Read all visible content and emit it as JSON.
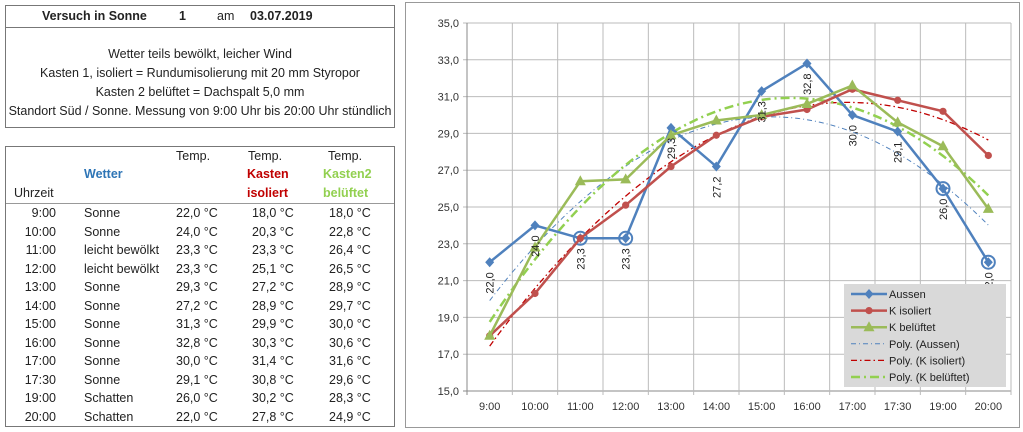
{
  "info": {
    "title": "Versuch in Sonne",
    "number": "1",
    "am": "am",
    "date": "03.07.2019",
    "lines": [
      "Wetter teils bewölkt, leicher Wind",
      "Kasten 1, isoliert = Rundumisolierung mit 20 mm Styropor",
      "Kasten 2 belüftet = Dachspalt 5,0 mm",
      "Standort Süd / Sonne. Messung von 9:00 Uhr bis 20:00 Uhr stündlich"
    ]
  },
  "table": {
    "headers": {
      "uhrzeit": "Uhrzeit",
      "wetter": "Wetter",
      "temp": "Temp.",
      "kasten": "Kasten",
      "isoliert": "isoliert",
      "kasten2": "Kasten2",
      "belueftet": "belüftet"
    },
    "colors": {
      "wetter": "#2e75b6",
      "kasten": "#c00000",
      "kasten2": "#92d050"
    },
    "rows": [
      [
        "9:00",
        "Sonne",
        "22,0 °C",
        "18,0 °C",
        "18,0 °C"
      ],
      [
        "10:00",
        "Sonne",
        "24,0 °C",
        "20,3 °C",
        "22,8 °C"
      ],
      [
        "11:00",
        "leicht bewölkt",
        "23,3 °C",
        "23,3 °C",
        "26,4 °C"
      ],
      [
        "12:00",
        "leicht bewölkt",
        "23,3 °C",
        "25,1 °C",
        "26,5 °C"
      ],
      [
        "13:00",
        "Sonne",
        "29,3 °C",
        "27,2 °C",
        "28,9 °C"
      ],
      [
        "14:00",
        "Sonne",
        "27,2 °C",
        "28,9 °C",
        "29,7 °C"
      ],
      [
        "15:00",
        "Sonne",
        "31,3 °C",
        "29,9 °C",
        "30,0 °C"
      ],
      [
        "16:00",
        "Sonne",
        "32,8 °C",
        "30,3 °C",
        "30,6 °C"
      ],
      [
        "17:00",
        "Sonne",
        "30,0 °C",
        "31,4 °C",
        "31,6 °C"
      ],
      [
        "17:30",
        "Sonne",
        "29,1 °C",
        "30,8 °C",
        "29,6 °C"
      ],
      [
        "19:00",
        "Schatten",
        "26,0 °C",
        "30,2 °C",
        "28,3 °C"
      ],
      [
        "20:00",
        "Schatten",
        "22,0 °C",
        "27,8 °C",
        "24,9 °C"
      ]
    ]
  },
  "chart_data": {
    "type": "line",
    "categories": [
      "9:00",
      "10:00",
      "11:00",
      "12:00",
      "13:00",
      "14:00",
      "15:00",
      "16:00",
      "17:00",
      "17:30",
      "19:00",
      "20:00"
    ],
    "ylim": [
      15,
      35
    ],
    "yticks": [
      "15,0",
      "17,0",
      "19,0",
      "21,0",
      "23,0",
      "25,0",
      "27,0",
      "29,0",
      "31,0",
      "33,0",
      "35,0"
    ],
    "grid": true,
    "legend_position": "bottom-right",
    "series": [
      {
        "name": "Aussen",
        "color": "#4f81bd",
        "marker": "diamond",
        "values": [
          22.0,
          24.0,
          23.3,
          23.3,
          29.3,
          27.2,
          31.3,
          32.8,
          30.0,
          29.1,
          26.0,
          22.0
        ],
        "data_labels": [
          "22,0",
          "24,0",
          "23,3",
          "23,3",
          "29,3",
          "27,2",
          "31,3",
          "32,8",
          "30,0",
          "29,1",
          "26,0",
          "22,0"
        ],
        "highlighted_points": [
          2,
          3,
          10,
          11
        ]
      },
      {
        "name": "K isoliert",
        "color": "#c0504d",
        "marker": "circle",
        "values": [
          18.0,
          20.3,
          23.3,
          25.1,
          27.2,
          28.9,
          29.9,
          30.3,
          31.4,
          30.8,
          30.2,
          27.8
        ]
      },
      {
        "name": "K belüftet",
        "color": "#9bbb59",
        "marker": "triangle",
        "values": [
          18.0,
          22.8,
          26.4,
          26.5,
          28.9,
          29.7,
          30.0,
          30.6,
          31.6,
          29.6,
          28.3,
          24.9
        ]
      }
    ],
    "trendlines": [
      {
        "name": "Poly. (Aussen)",
        "of": "Aussen",
        "color": "#4f81bd",
        "order": 2
      },
      {
        "name": "Poly. (K isoliert)",
        "of": "K isoliert",
        "color": "#c00000",
        "order": 2
      },
      {
        "name": "Poly. (K belüftet)",
        "of": "K belüftet",
        "color": "#92d050",
        "order": 2
      }
    ]
  }
}
